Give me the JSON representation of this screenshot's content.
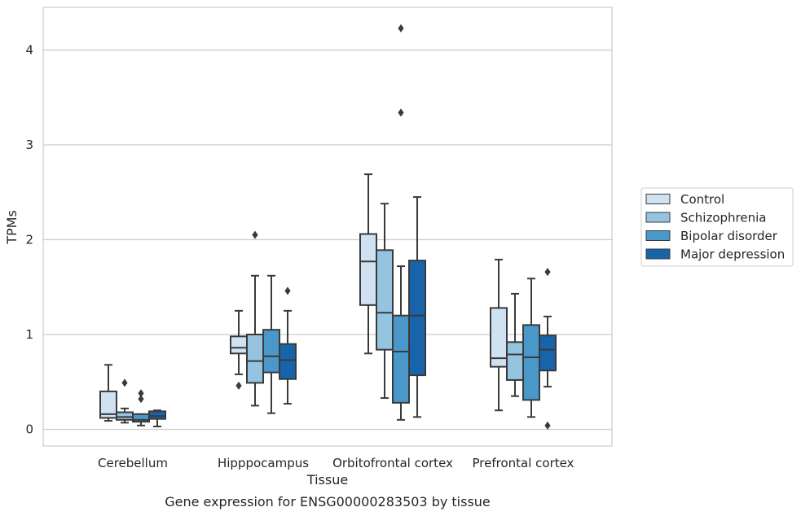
{
  "chart_data": {
    "type": "box",
    "xlabel": "Tissue",
    "ylabel": "TPMs",
    "caption": "Gene expression for ENSG00000283503 by tissue",
    "ylim": [
      -0.18,
      4.5
    ],
    "yticks": [
      0,
      1,
      2,
      3,
      4
    ],
    "grid": "horizontal",
    "legend_position": "right",
    "categories": [
      "Cerebellum",
      "Hipppocampus",
      "Orbitofrontal cortex",
      "Prefrontal cortex"
    ],
    "series": [
      {
        "name": "Control",
        "color": "#d0e1f2",
        "boxes": [
          {
            "whisker_low": 0.09,
            "q1": 0.12,
            "median": 0.16,
            "q3": 0.4,
            "whisker_high": 0.68,
            "outliers": []
          },
          {
            "whisker_low": 0.58,
            "q1": 0.8,
            "median": 0.86,
            "q3": 0.98,
            "whisker_high": 1.25,
            "outliers": [
              0.46
            ]
          },
          {
            "whisker_low": 0.8,
            "q1": 1.31,
            "median": 1.77,
            "q3": 2.06,
            "whisker_high": 2.69,
            "outliers": []
          },
          {
            "whisker_low": 0.2,
            "q1": 0.66,
            "median": 0.75,
            "q3": 1.28,
            "whisker_high": 1.79,
            "outliers": []
          }
        ]
      },
      {
        "name": "Schizophrenia",
        "color": "#94c4df",
        "boxes": [
          {
            "whisker_low": 0.07,
            "q1": 0.1,
            "median": 0.13,
            "q3": 0.18,
            "whisker_high": 0.22,
            "outliers": [
              0.49
            ]
          },
          {
            "whisker_low": 0.25,
            "q1": 0.49,
            "median": 0.72,
            "q3": 1.0,
            "whisker_high": 1.62,
            "outliers": [
              2.05
            ]
          },
          {
            "whisker_low": 0.33,
            "q1": 0.84,
            "median": 1.23,
            "q3": 1.89,
            "whisker_high": 2.38,
            "outliers": []
          },
          {
            "whisker_low": 0.35,
            "q1": 0.52,
            "median": 0.79,
            "q3": 0.92,
            "whisker_high": 1.43,
            "outliers": []
          }
        ]
      },
      {
        "name": "Bipolar disorder",
        "color": "#4a98c9",
        "boxes": [
          {
            "whisker_low": 0.04,
            "q1": 0.08,
            "median": 0.1,
            "q3": 0.16,
            "whisker_high": 0.16,
            "outliers": [
              0.38,
              0.32
            ]
          },
          {
            "whisker_low": 0.17,
            "q1": 0.6,
            "median": 0.77,
            "q3": 1.05,
            "whisker_high": 1.62,
            "outliers": []
          },
          {
            "whisker_low": 0.1,
            "q1": 0.28,
            "median": 0.82,
            "q3": 1.2,
            "whisker_high": 1.72,
            "outliers": [
              4.23,
              3.34
            ]
          },
          {
            "whisker_low": 0.13,
            "q1": 0.31,
            "median": 0.76,
            "q3": 1.1,
            "whisker_high": 1.59,
            "outliers": []
          }
        ]
      },
      {
        "name": "Major depression",
        "color": "#1764ab",
        "boxes": [
          {
            "whisker_low": 0.03,
            "q1": 0.11,
            "median": 0.14,
            "q3": 0.19,
            "whisker_high": 0.2,
            "outliers": []
          },
          {
            "whisker_low": 0.27,
            "q1": 0.53,
            "median": 0.73,
            "q3": 0.9,
            "whisker_high": 1.25,
            "outliers": [
              1.46
            ]
          },
          {
            "whisker_low": 0.13,
            "q1": 0.57,
            "median": 1.2,
            "q3": 1.78,
            "whisker_high": 2.45,
            "outliers": []
          },
          {
            "whisker_low": 0.45,
            "q1": 0.62,
            "median": 0.84,
            "q3": 0.99,
            "whisker_high": 1.19,
            "outliers": [
              1.66,
              0.04
            ]
          }
        ]
      }
    ]
  }
}
